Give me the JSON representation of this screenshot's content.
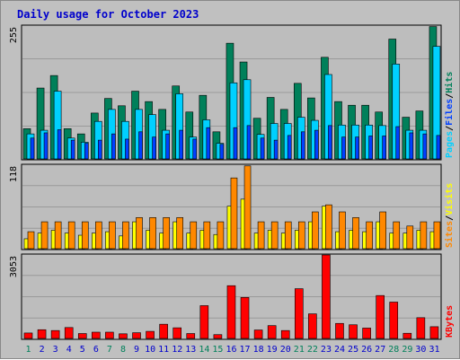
{
  "title": "Daily usage for October 2023",
  "colors": {
    "background": "#c0c0c0",
    "plot_bg": "#bdbdbd",
    "title": "#0000cc",
    "hits": "#00805a",
    "files": "#00d0ff",
    "pages": "#0040ff",
    "sites": "#ffff00",
    "visits": "#ff8800",
    "kbytes": "#ff0000",
    "weekend_label": "#00805a",
    "weekday_label": "#0000cc"
  },
  "legend": {
    "top": [
      "Pages",
      "Files",
      "Hits"
    ],
    "middle": [
      "Sites",
      "Visits"
    ],
    "bottom": [
      "KBytes"
    ],
    "separator": "/"
  },
  "chart_data": {
    "type": "bar",
    "x": [
      1,
      2,
      3,
      4,
      5,
      6,
      7,
      8,
      9,
      10,
      11,
      12,
      13,
      14,
      15,
      16,
      17,
      18,
      19,
      20,
      21,
      22,
      23,
      24,
      25,
      26,
      27,
      28,
      29,
      30,
      31
    ],
    "weekend_days": [
      1,
      7,
      8,
      14,
      15,
      21,
      22,
      28,
      29
    ],
    "panels": [
      {
        "name": "hits-files-pages",
        "ymax_label": "255",
        "ylim": [
          0,
          255
        ],
        "series": [
          {
            "name": "Hits",
            "values": [
              58,
              136,
              160,
              58,
              48,
              88,
              116,
              102,
              130,
              110,
              95,
              140,
              90,
              122,
              52,
              222,
              186,
              78,
              118,
              95,
              145,
              117,
              195,
              110,
              103,
              103,
              90,
              230,
              80,
              92,
              254
            ]
          },
          {
            "name": "Files",
            "values": [
              48,
              55,
              130,
              40,
              32,
              72,
              95,
              72,
              95,
              85,
              55,
              125,
              42,
              75,
              30,
              146,
              152,
              47,
              68,
              68,
              80,
              74,
              162,
              65,
              65,
              65,
              64,
              182,
              55,
              55,
              216
            ]
          },
          {
            "name": "Pages",
            "values": [
              40,
              50,
              56,
              36,
              30,
              36,
              48,
              38,
              52,
              42,
              48,
              55,
              38,
              60,
              28,
              60,
              64,
              40,
              36,
              45,
              52,
              55,
              64,
              42,
              42,
              44,
              44,
              62,
              50,
              48,
              45
            ]
          }
        ]
      },
      {
        "name": "sites-visits",
        "ymax_label": "118",
        "ylim": [
          0,
          118
        ],
        "series": [
          {
            "name": "Sites",
            "values": [
              14,
              22,
              26,
              22,
              19,
              22,
              24,
              18,
              38,
              26,
              22,
              38,
              22,
              26,
              20,
              60,
              70,
              22,
              26,
              22,
              26,
              38,
              60,
              24,
              26,
              24,
              38,
              22,
              22,
              26,
              24
            ]
          },
          {
            "name": "Visits",
            "values": [
              24,
              38,
              38,
              38,
              38,
              38,
              38,
              38,
              44,
              44,
              44,
              44,
              38,
              38,
              38,
              100,
              117,
              38,
              38,
              38,
              38,
              52,
              62,
              52,
              44,
              38,
              52,
              38,
              32,
              38,
              38
            ]
          }
        ]
      },
      {
        "name": "kbytes",
        "ymax_label": "3053",
        "ylim": [
          0,
          3053
        ],
        "series": [
          {
            "name": "KBytes",
            "values": [
              200,
              320,
              290,
              400,
              180,
              230,
              230,
              170,
              210,
              260,
              520,
              390,
              180,
              1200,
              140,
              1930,
              1500,
              310,
              470,
              290,
              1820,
              900,
              3053,
              550,
              500,
              380,
              1570,
              1330,
              190,
              760,
              430
            ]
          }
        ]
      }
    ]
  }
}
